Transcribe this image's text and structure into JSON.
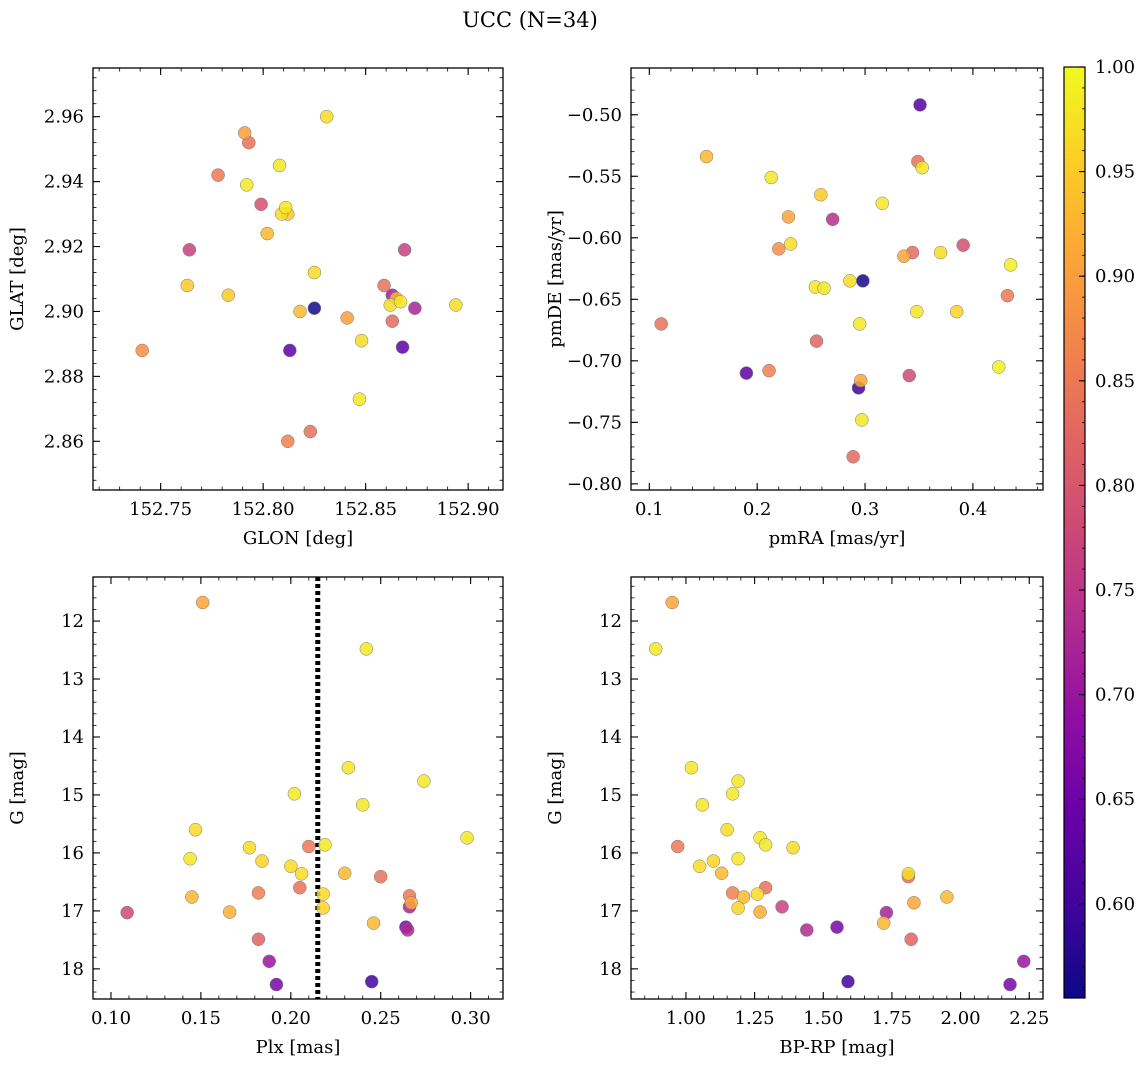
{
  "figure": {
    "title": "UCC (N=34)"
  },
  "colormap": {
    "name": "plasma",
    "vmin": 0.555,
    "vmax": 1.0,
    "ticks": [
      "0.60",
      "0.65",
      "0.70",
      "0.75",
      "0.80",
      "0.85",
      "0.90",
      "0.95",
      "1.00"
    ],
    "tick_values": [
      0.6,
      0.65,
      0.7,
      0.75,
      0.8,
      0.85,
      0.9,
      0.95,
      1.0
    ]
  },
  "chart_data": [
    {
      "type": "scatter",
      "xlabel": "GLON [deg]",
      "ylabel": "GLAT [deg]",
      "xlim": [
        152.717,
        152.917
      ],
      "ylim": [
        2.845,
        2.975
      ],
      "xticks": [
        152.75,
        152.8,
        152.85,
        152.9
      ],
      "xtick_labels": [
        "152.75",
        "152.80",
        "152.85",
        "152.90"
      ],
      "yticks": [
        2.86,
        2.88,
        2.9,
        2.92,
        2.94,
        2.96
      ],
      "ytick_labels": [
        "2.86",
        "2.88",
        "2.90",
        "2.92",
        "2.94",
        "2.96"
      ],
      "y_inverted": false,
      "points": [
        {
          "x": 152.741,
          "y": 2.888,
          "c": 0.88
        },
        {
          "x": 152.763,
          "y": 2.908,
          "c": 0.95
        },
        {
          "x": 152.764,
          "y": 2.919,
          "c": 0.77
        },
        {
          "x": 152.778,
          "y": 2.942,
          "c": 0.85
        },
        {
          "x": 152.783,
          "y": 2.905,
          "c": 0.95
        },
        {
          "x": 152.791,
          "y": 2.955,
          "c": 0.9
        },
        {
          "x": 152.792,
          "y": 2.939,
          "c": 0.98
        },
        {
          "x": 152.793,
          "y": 2.952,
          "c": 0.84
        },
        {
          "x": 152.799,
          "y": 2.933,
          "c": 0.79
        },
        {
          "x": 152.802,
          "y": 2.924,
          "c": 0.93
        },
        {
          "x": 152.808,
          "y": 2.945,
          "c": 0.98
        },
        {
          "x": 152.809,
          "y": 2.93,
          "c": 0.97
        },
        {
          "x": 152.811,
          "y": 2.932,
          "c": 0.98
        },
        {
          "x": 152.812,
          "y": 2.93,
          "c": 0.95
        },
        {
          "x": 152.812,
          "y": 2.86,
          "c": 0.86
        },
        {
          "x": 152.813,
          "y": 2.888,
          "c": 0.63
        },
        {
          "x": 152.818,
          "y": 2.9,
          "c": 0.93
        },
        {
          "x": 152.823,
          "y": 2.863,
          "c": 0.84
        },
        {
          "x": 152.825,
          "y": 2.912,
          "c": 0.97
        },
        {
          "x": 152.825,
          "y": 2.901,
          "c": 0.56
        },
        {
          "x": 152.831,
          "y": 2.96,
          "c": 0.97
        },
        {
          "x": 152.841,
          "y": 2.898,
          "c": 0.9
        },
        {
          "x": 152.847,
          "y": 2.873,
          "c": 0.98
        },
        {
          "x": 152.848,
          "y": 2.891,
          "c": 0.97
        },
        {
          "x": 152.859,
          "y": 2.908,
          "c": 0.84
        },
        {
          "x": 152.862,
          "y": 2.902,
          "c": 0.97
        },
        {
          "x": 152.863,
          "y": 2.897,
          "c": 0.83
        },
        {
          "x": 152.863,
          "y": 2.905,
          "c": 0.71
        },
        {
          "x": 152.865,
          "y": 2.904,
          "c": 0.93
        },
        {
          "x": 152.867,
          "y": 2.903,
          "c": 0.98
        },
        {
          "x": 152.868,
          "y": 2.889,
          "c": 0.63
        },
        {
          "x": 152.869,
          "y": 2.919,
          "c": 0.77
        },
        {
          "x": 152.874,
          "y": 2.901,
          "c": 0.72
        },
        {
          "x": 152.894,
          "y": 2.902,
          "c": 0.97
        }
      ]
    },
    {
      "type": "scatter",
      "xlabel": "pmRA [mas/yr]",
      "ylabel": "pmDE [mas/yr]",
      "xlim": [
        0.083,
        0.465
      ],
      "ylim": [
        -0.805,
        -0.462
      ],
      "xticks": [
        0.1,
        0.2,
        0.3,
        0.4
      ],
      "xtick_labels": [
        "0.1",
        "0.2",
        "0.3",
        "0.4"
      ],
      "yticks": [
        -0.8,
        -0.75,
        -0.7,
        -0.65,
        -0.6,
        -0.55,
        -0.5
      ],
      "ytick_labels": [
        "−0.80",
        "−0.75",
        "−0.70",
        "−0.65",
        "−0.60",
        "−0.55",
        "−0.50"
      ],
      "y_inverted": false,
      "points": [
        {
          "x": 0.111,
          "y": -0.67,
          "c": 0.84
        },
        {
          "x": 0.153,
          "y": -0.534,
          "c": 0.93
        },
        {
          "x": 0.19,
          "y": -0.71,
          "c": 0.63
        },
        {
          "x": 0.211,
          "y": -0.708,
          "c": 0.86
        },
        {
          "x": 0.213,
          "y": -0.551,
          "c": 0.98
        },
        {
          "x": 0.22,
          "y": -0.609,
          "c": 0.88
        },
        {
          "x": 0.229,
          "y": -0.583,
          "c": 0.91
        },
        {
          "x": 0.231,
          "y": -0.605,
          "c": 0.97
        },
        {
          "x": 0.255,
          "y": -0.684,
          "c": 0.82
        },
        {
          "x": 0.254,
          "y": -0.64,
          "c": 0.98
        },
        {
          "x": 0.259,
          "y": -0.565,
          "c": 0.95
        },
        {
          "x": 0.262,
          "y": -0.641,
          "c": 0.98
        },
        {
          "x": 0.27,
          "y": -0.585,
          "c": 0.74
        },
        {
          "x": 0.286,
          "y": -0.635,
          "c": 0.97
        },
        {
          "x": 0.289,
          "y": -0.778,
          "c": 0.83
        },
        {
          "x": 0.294,
          "y": -0.722,
          "c": 0.6
        },
        {
          "x": 0.296,
          "y": -0.716,
          "c": 0.91
        },
        {
          "x": 0.295,
          "y": -0.67,
          "c": 0.98
        },
        {
          "x": 0.297,
          "y": -0.748,
          "c": 0.98
        },
        {
          "x": 0.298,
          "y": -0.635,
          "c": 0.56
        },
        {
          "x": 0.316,
          "y": -0.572,
          "c": 0.98
        },
        {
          "x": 0.336,
          "y": -0.615,
          "c": 0.91
        },
        {
          "x": 0.341,
          "y": -0.712,
          "c": 0.78
        },
        {
          "x": 0.344,
          "y": -0.612,
          "c": 0.83
        },
        {
          "x": 0.348,
          "y": -0.66,
          "c": 0.98
        },
        {
          "x": 0.349,
          "y": -0.538,
          "c": 0.84
        },
        {
          "x": 0.351,
          "y": -0.492,
          "c": 0.62
        },
        {
          "x": 0.353,
          "y": -0.543,
          "c": 0.98
        },
        {
          "x": 0.37,
          "y": -0.612,
          "c": 0.97
        },
        {
          "x": 0.385,
          "y": -0.66,
          "c": 0.96
        },
        {
          "x": 0.391,
          "y": -0.606,
          "c": 0.79
        },
        {
          "x": 0.424,
          "y": -0.705,
          "c": 0.99
        },
        {
          "x": 0.432,
          "y": -0.647,
          "c": 0.85
        },
        {
          "x": 0.435,
          "y": -0.622,
          "c": 0.99
        }
      ]
    },
    {
      "type": "scatter",
      "xlabel": "Plx [mas]",
      "ylabel": "G [mag]",
      "xlim": [
        0.09,
        0.318
      ],
      "ylim": [
        18.52,
        11.24
      ],
      "xticks": [
        0.1,
        0.15,
        0.2,
        0.25,
        0.3
      ],
      "xtick_labels": [
        "0.10",
        "0.15",
        "0.20",
        "0.25",
        "0.30"
      ],
      "yticks": [
        12,
        13,
        14,
        15,
        16,
        17,
        18
      ],
      "ytick_labels": [
        "12",
        "13",
        "14",
        "15",
        "16",
        "17",
        "18"
      ],
      "y_inverted": true,
      "vline": {
        "x": 0.215,
        "style": "dotted"
      },
      "points": [
        {
          "x": 0.109,
          "y": 17.03,
          "c": 0.78
        },
        {
          "x": 0.144,
          "y": 16.1,
          "c": 0.98
        },
        {
          "x": 0.145,
          "y": 16.76,
          "c": 0.93
        },
        {
          "x": 0.147,
          "y": 15.6,
          "c": 0.97
        },
        {
          "x": 0.151,
          "y": 11.68,
          "c": 0.91
        },
        {
          "x": 0.166,
          "y": 17.02,
          "c": 0.92
        },
        {
          "x": 0.177,
          "y": 15.91,
          "c": 0.97
        },
        {
          "x": 0.182,
          "y": 16.69,
          "c": 0.86
        },
        {
          "x": 0.182,
          "y": 17.49,
          "c": 0.82
        },
        {
          "x": 0.184,
          "y": 16.14,
          "c": 0.96
        },
        {
          "x": 0.188,
          "y": 17.87,
          "c": 0.7
        },
        {
          "x": 0.192,
          "y": 18.27,
          "c": 0.66
        },
        {
          "x": 0.2,
          "y": 16.23,
          "c": 0.97
        },
        {
          "x": 0.202,
          "y": 14.98,
          "c": 0.98
        },
        {
          "x": 0.205,
          "y": 16.6,
          "c": 0.84
        },
        {
          "x": 0.206,
          "y": 16.36,
          "c": 0.97
        },
        {
          "x": 0.21,
          "y": 15.89,
          "c": 0.85
        },
        {
          "x": 0.218,
          "y": 16.71,
          "c": 0.97
        },
        {
          "x": 0.218,
          "y": 16.95,
          "c": 0.96
        },
        {
          "x": 0.219,
          "y": 15.86,
          "c": 0.98
        },
        {
          "x": 0.23,
          "y": 16.35,
          "c": 0.93
        },
        {
          "x": 0.232,
          "y": 14.53,
          "c": 0.98
        },
        {
          "x": 0.24,
          "y": 15.17,
          "c": 0.98
        },
        {
          "x": 0.242,
          "y": 12.48,
          "c": 0.98
        },
        {
          "x": 0.245,
          "y": 18.22,
          "c": 0.6
        },
        {
          "x": 0.246,
          "y": 17.21,
          "c": 0.93
        },
        {
          "x": 0.25,
          "y": 16.41,
          "c": 0.84
        },
        {
          "x": 0.264,
          "y": 17.28,
          "c": 0.66
        },
        {
          "x": 0.265,
          "y": 17.33,
          "c": 0.73
        },
        {
          "x": 0.266,
          "y": 16.93,
          "c": 0.72
        },
        {
          "x": 0.266,
          "y": 16.74,
          "c": 0.85
        },
        {
          "x": 0.267,
          "y": 16.86,
          "c": 0.91
        },
        {
          "x": 0.274,
          "y": 14.76,
          "c": 0.98
        },
        {
          "x": 0.298,
          "y": 15.74,
          "c": 0.98
        }
      ]
    },
    {
      "type": "scatter",
      "xlabel": "BP-RP [mag]",
      "ylabel": "G [mag]",
      "xlim": [
        0.8,
        2.3
      ],
      "ylim": [
        18.52,
        11.24
      ],
      "xticks": [
        1.0,
        1.25,
        1.5,
        1.75,
        2.0,
        2.25
      ],
      "xtick_labels": [
        "1.00",
        "1.25",
        "1.50",
        "1.75",
        "2.00",
        "2.25"
      ],
      "yticks": [
        12,
        13,
        14,
        15,
        16,
        17,
        18
      ],
      "ytick_labels": [
        "12",
        "13",
        "14",
        "15",
        "16",
        "17",
        "18"
      ],
      "y_inverted": true,
      "points": [
        {
          "x": 0.89,
          "y": 12.48,
          "c": 0.98
        },
        {
          "x": 0.95,
          "y": 11.68,
          "c": 0.91
        },
        {
          "x": 0.97,
          "y": 15.89,
          "c": 0.85
        },
        {
          "x": 1.02,
          "y": 14.53,
          "c": 0.98
        },
        {
          "x": 1.05,
          "y": 16.23,
          "c": 0.97
        },
        {
          "x": 1.06,
          "y": 15.17,
          "c": 0.98
        },
        {
          "x": 1.1,
          "y": 16.14,
          "c": 0.96
        },
        {
          "x": 1.13,
          "y": 16.35,
          "c": 0.93
        },
        {
          "x": 1.15,
          "y": 15.6,
          "c": 0.97
        },
        {
          "x": 1.17,
          "y": 16.69,
          "c": 0.86
        },
        {
          "x": 1.17,
          "y": 14.98,
          "c": 0.98
        },
        {
          "x": 1.19,
          "y": 16.1,
          "c": 0.98
        },
        {
          "x": 1.19,
          "y": 16.95,
          "c": 0.96
        },
        {
          "x": 1.19,
          "y": 14.76,
          "c": 0.98
        },
        {
          "x": 1.21,
          "y": 16.76,
          "c": 0.93
        },
        {
          "x": 1.26,
          "y": 16.71,
          "c": 0.97
        },
        {
          "x": 1.27,
          "y": 15.74,
          "c": 0.98
        },
        {
          "x": 1.27,
          "y": 17.02,
          "c": 0.92
        },
        {
          "x": 1.29,
          "y": 16.6,
          "c": 0.84
        },
        {
          "x": 1.29,
          "y": 15.86,
          "c": 0.98
        },
        {
          "x": 1.35,
          "y": 16.93,
          "c": 0.77
        },
        {
          "x": 1.39,
          "y": 15.91,
          "c": 0.97
        },
        {
          "x": 1.44,
          "y": 17.33,
          "c": 0.73
        },
        {
          "x": 1.55,
          "y": 17.28,
          "c": 0.66
        },
        {
          "x": 1.59,
          "y": 18.22,
          "c": 0.6
        },
        {
          "x": 1.72,
          "y": 17.21,
          "c": 0.93
        },
        {
          "x": 1.73,
          "y": 17.03,
          "c": 0.72
        },
        {
          "x": 1.81,
          "y": 16.41,
          "c": 0.84
        },
        {
          "x": 1.81,
          "y": 16.36,
          "c": 0.97
        },
        {
          "x": 1.82,
          "y": 17.49,
          "c": 0.82
        },
        {
          "x": 1.83,
          "y": 16.86,
          "c": 0.91
        },
        {
          "x": 1.95,
          "y": 16.76,
          "c": 0.93
        },
        {
          "x": 2.18,
          "y": 18.27,
          "c": 0.66
        },
        {
          "x": 2.23,
          "y": 17.87,
          "c": 0.7
        }
      ]
    }
  ]
}
